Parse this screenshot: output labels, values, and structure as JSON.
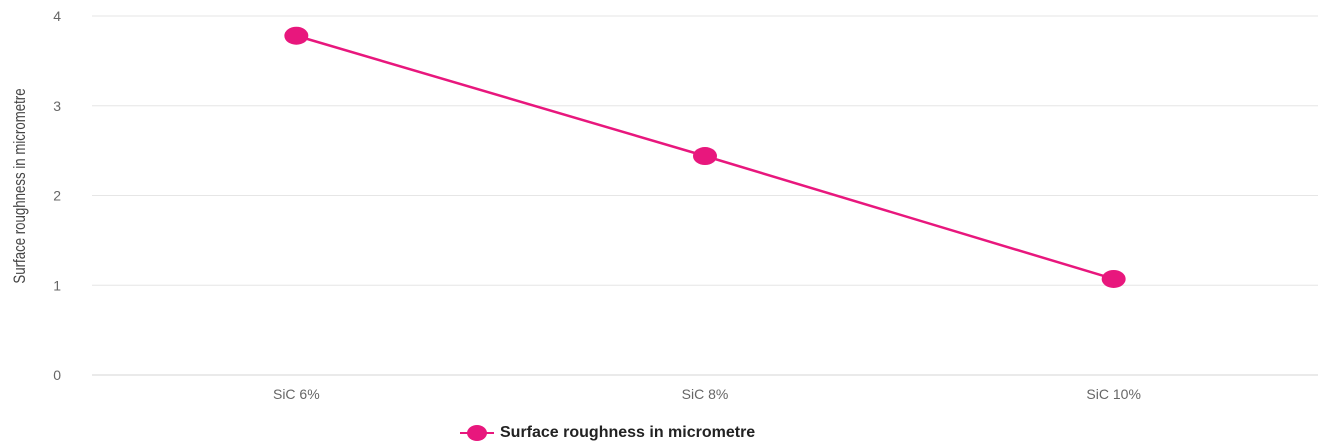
{
  "colors": {
    "series": "#e8177d",
    "grid": "#e6e6e6",
    "axis": "#d6d6d6"
  },
  "legend": {
    "label": "Surface roughness in micrometre"
  },
  "chart_data": {
    "type": "line",
    "title": "",
    "xlabel": "",
    "ylabel": "Surface roughness in micrometre",
    "categories": [
      "SiC 6%",
      "SiC 8%",
      "SiC 10%"
    ],
    "series": [
      {
        "name": "Surface roughness in micrometre",
        "values": [
          3.78,
          2.44,
          1.07
        ]
      }
    ],
    "ylim": [
      0,
      4
    ],
    "yticks": [
      "0",
      "1",
      "2",
      "3",
      "4"
    ],
    "grid": true,
    "legend_position": "bottom-center"
  }
}
